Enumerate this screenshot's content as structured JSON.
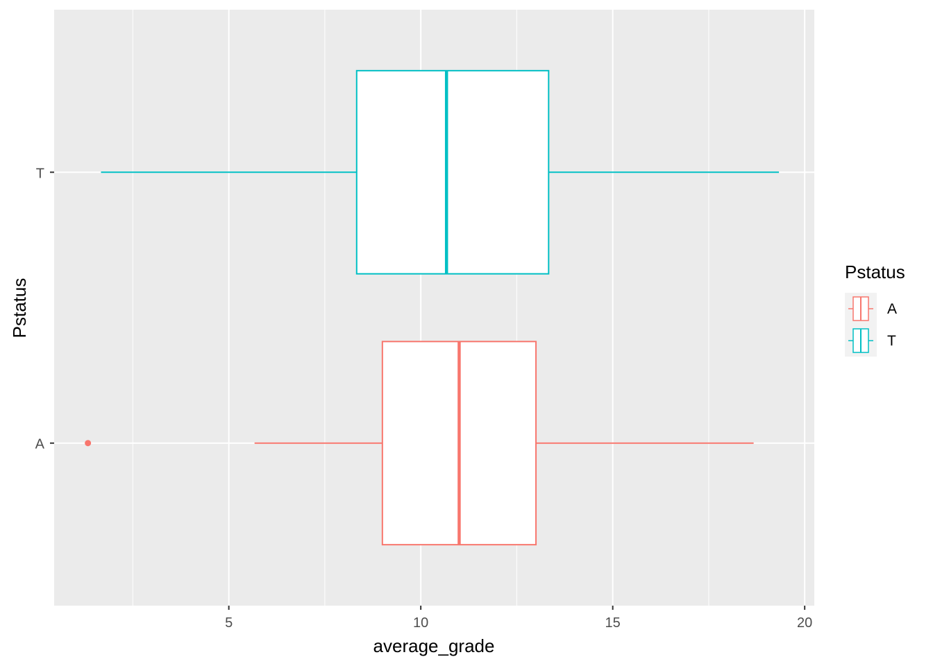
{
  "chart_data": {
    "type": "boxplot",
    "orientation": "horizontal",
    "xlabel": "average_grade",
    "ylabel": "Pstatus",
    "xlim": [
      0.45,
      20.25
    ],
    "x_ticks": [
      5,
      10,
      15,
      20
    ],
    "x_tick_labels": [
      "5",
      "10",
      "15",
      "20"
    ],
    "categories": [
      "A",
      "T"
    ],
    "grid": true,
    "background": "#EBEBEB",
    "legend": {
      "title": "Pstatus",
      "position": "right",
      "entries": [
        "A",
        "T"
      ]
    },
    "series": [
      {
        "name": "A",
        "color": "#F8766D",
        "whisker_low": 5.67,
        "q1": 9.0,
        "median": 11.0,
        "q3": 13.0,
        "whisker_high": 18.67,
        "outliers": [
          1.33
        ]
      },
      {
        "name": "T",
        "color": "#00BFC4",
        "whisker_low": 1.67,
        "q1": 8.33,
        "median": 10.67,
        "q3": 13.33,
        "whisker_high": 19.33,
        "outliers": []
      }
    ]
  }
}
